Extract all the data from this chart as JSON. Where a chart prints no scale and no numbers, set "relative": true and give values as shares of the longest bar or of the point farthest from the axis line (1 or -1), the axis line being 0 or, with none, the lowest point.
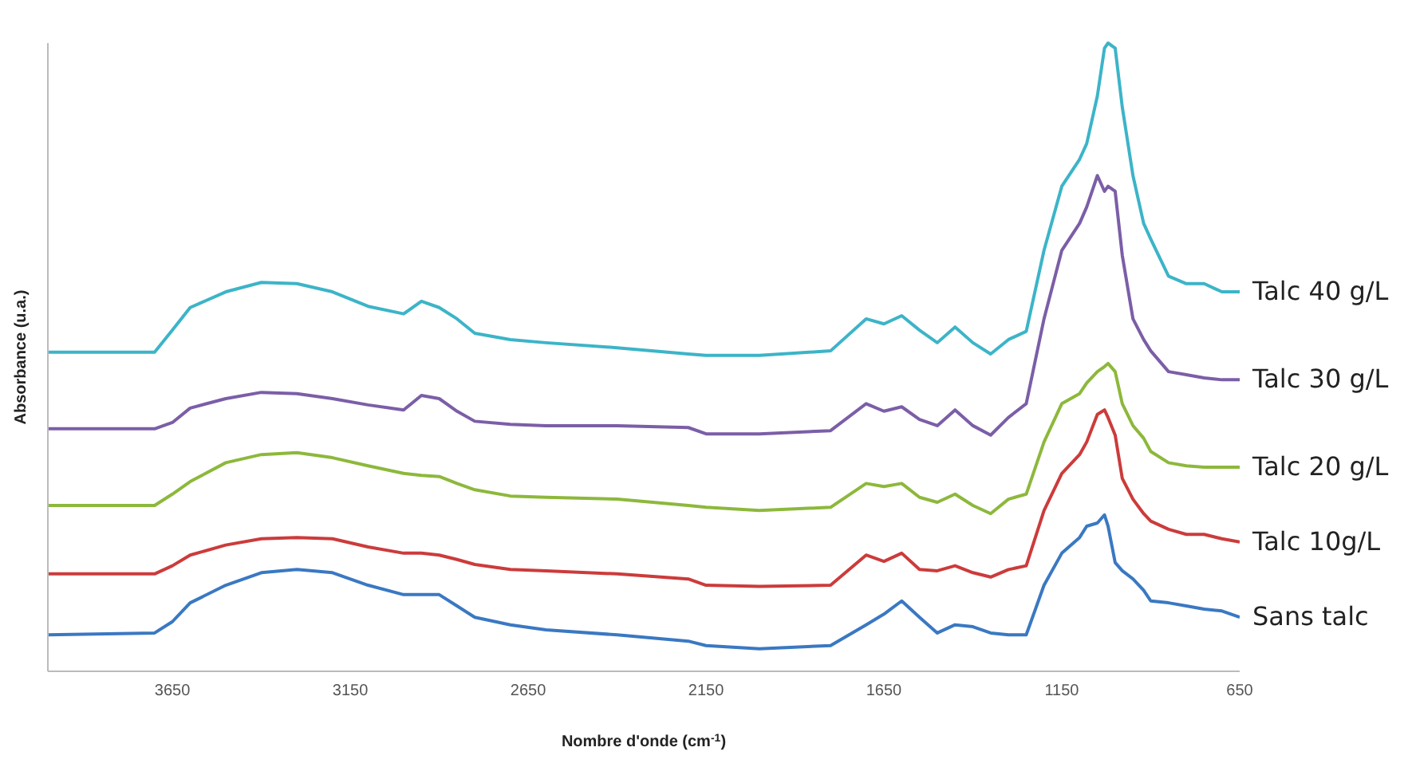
{
  "chart_data": {
    "type": "line",
    "relative": true,
    "xlabel": "Nombre d'onde (cm$^{-1}$)",
    "ylabel": "Absorbance (u.a.)",
    "xlim": [
      4000,
      650
    ],
    "xticks": [
      3650,
      3150,
      2650,
      2150,
      1650,
      1150,
      650
    ],
    "x": [
      4000,
      3700,
      3650,
      3600,
      3500,
      3400,
      3300,
      3200,
      3100,
      3000,
      2950,
      2900,
      2850,
      2800,
      2700,
      2600,
      2400,
      2200,
      2150,
      2000,
      1800,
      1700,
      1650,
      1600,
      1550,
      1500,
      1450,
      1400,
      1350,
      1300,
      1250,
      1200,
      1150,
      1100,
      1080,
      1050,
      1030,
      1020,
      1000,
      980,
      950,
      920,
      900,
      850,
      800,
      750,
      700,
      650
    ],
    "series": [
      {
        "name": "Talc 40 g/L",
        "color": "#3cb4c8",
        "values": [
          0.508,
          0.508,
          0.543,
          0.579,
          0.604,
          0.619,
          0.617,
          0.604,
          0.581,
          0.569,
          0.589,
          0.579,
          0.561,
          0.538,
          0.528,
          0.523,
          0.515,
          0.505,
          0.503,
          0.503,
          0.51,
          0.561,
          0.553,
          0.566,
          0.543,
          0.523,
          0.548,
          0.523,
          0.505,
          0.528,
          0.541,
          0.67,
          0.772,
          0.815,
          0.84,
          0.916,
          0.992,
          1,
          0.992,
          0.898,
          0.789,
          0.713,
          0.688,
          0.629,
          0.617,
          0.617,
          0.604,
          0.604
        ]
      },
      {
        "name": "Talc 30 g/L",
        "color": "#7b5ea7",
        "values": [
          0.386,
          0.386,
          0.396,
          0.419,
          0.434,
          0.444,
          0.442,
          0.434,
          0.424,
          0.416,
          0.439,
          0.434,
          0.414,
          0.398,
          0.393,
          0.391,
          0.391,
          0.388,
          0.378,
          0.378,
          0.383,
          0.426,
          0.414,
          0.421,
          0.401,
          0.391,
          0.416,
          0.391,
          0.376,
          0.404,
          0.426,
          0.561,
          0.67,
          0.713,
          0.739,
          0.789,
          0.764,
          0.772,
          0.764,
          0.662,
          0.561,
          0.528,
          0.51,
          0.477,
          0.472,
          0.467,
          0.464,
          0.464
        ]
      },
      {
        "name": "Talc 20 g/L",
        "color": "#8db83c",
        "values": [
          0.264,
          0.264,
          0.282,
          0.302,
          0.332,
          0.345,
          0.348,
          0.34,
          0.327,
          0.315,
          0.312,
          0.31,
          0.299,
          0.289,
          0.279,
          0.277,
          0.274,
          0.264,
          0.261,
          0.256,
          0.261,
          0.299,
          0.294,
          0.299,
          0.277,
          0.269,
          0.282,
          0.264,
          0.251,
          0.274,
          0.282,
          0.365,
          0.426,
          0.442,
          0.459,
          0.477,
          0.485,
          0.49,
          0.477,
          0.426,
          0.391,
          0.371,
          0.35,
          0.332,
          0.327,
          0.325,
          0.325,
          0.325
        ]
      },
      {
        "name": "Talc 10g/L",
        "color": "#cc3b3b",
        "values": [
          0.155,
          0.155,
          0.168,
          0.185,
          0.201,
          0.211,
          0.213,
          0.211,
          0.198,
          0.188,
          0.188,
          0.185,
          0.178,
          0.17,
          0.162,
          0.16,
          0.155,
          0.147,
          0.137,
          0.135,
          0.137,
          0.185,
          0.175,
          0.188,
          0.162,
          0.16,
          0.168,
          0.157,
          0.15,
          0.162,
          0.168,
          0.256,
          0.315,
          0.345,
          0.365,
          0.409,
          0.416,
          0.404,
          0.376,
          0.307,
          0.274,
          0.251,
          0.239,
          0.226,
          0.218,
          0.218,
          0.211,
          0.206
        ]
      },
      {
        "name": "Sans talc",
        "color": "#3a78c2",
        "values": [
          0.058,
          0.061,
          0.079,
          0.109,
          0.137,
          0.157,
          0.162,
          0.157,
          0.137,
          0.122,
          0.122,
          0.122,
          0.104,
          0.086,
          0.074,
          0.066,
          0.058,
          0.048,
          0.041,
          0.036,
          0.041,
          0.074,
          0.091,
          0.112,
          0.086,
          0.061,
          0.074,
          0.071,
          0.061,
          0.058,
          0.058,
          0.137,
          0.188,
          0.213,
          0.231,
          0.236,
          0.249,
          0.231,
          0.173,
          0.16,
          0.147,
          0.129,
          0.112,
          0.109,
          0.104,
          0.099,
          0.096,
          0.086
        ]
      }
    ],
    "legend": false,
    "grid": false,
    "marker": "none",
    "line_style": "solid"
  }
}
